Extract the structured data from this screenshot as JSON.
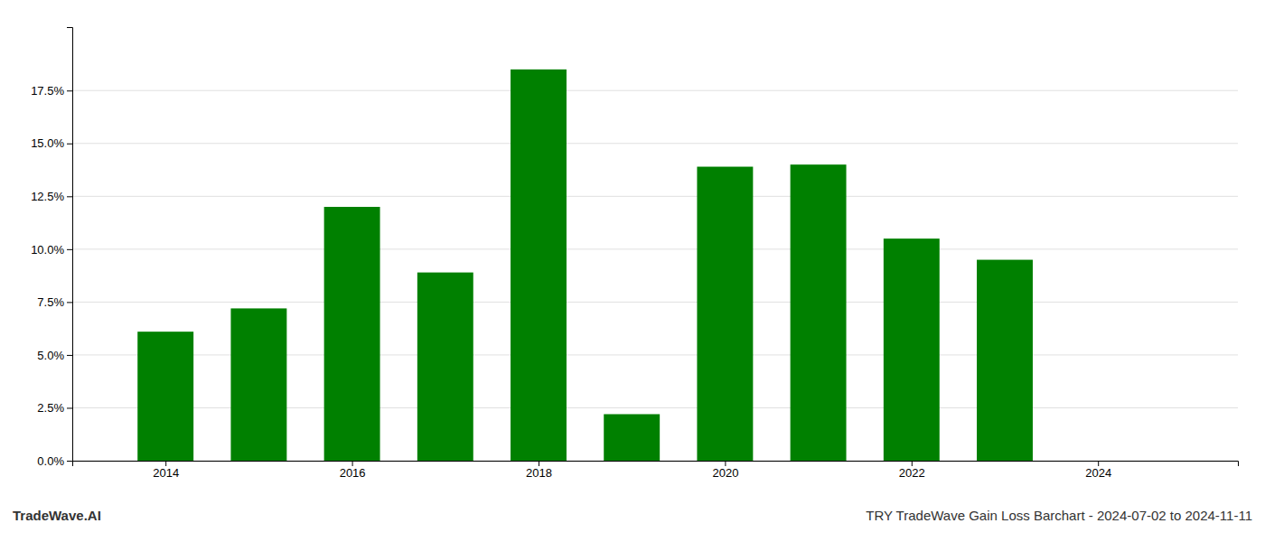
{
  "chart_data": {
    "type": "bar",
    "x": [
      2014,
      2015,
      2016,
      2017,
      2018,
      2019,
      2020,
      2021,
      2022,
      2023
    ],
    "values": [
      0.061,
      0.072,
      0.12,
      0.089,
      0.185,
      0.022,
      0.139,
      0.14,
      0.105,
      0.095
    ],
    "color": "#008000",
    "xlim": [
      2013.0,
      2025.5
    ],
    "xticks": [
      2014,
      2016,
      2018,
      2020,
      2022,
      2024
    ],
    "ylim": [
      0,
      0.205
    ],
    "yticks": [
      {
        "value": 0.0,
        "label": "0.0%"
      },
      {
        "value": 0.025,
        "label": "2.5%"
      },
      {
        "value": 0.05,
        "label": "5.0%"
      },
      {
        "value": 0.075,
        "label": "7.5%"
      },
      {
        "value": 0.1,
        "label": "10.0%"
      },
      {
        "value": 0.125,
        "label": "12.5%"
      },
      {
        "value": 0.15,
        "label": "15.0%"
      },
      {
        "value": 0.175,
        "label": "17.5%"
      }
    ],
    "grid": true,
    "annotations": [
      "TradeWave.AI",
      "TRY TradeWave Gain Loss Barchart - 2024-07-02 to 2024-11-11"
    ]
  }
}
